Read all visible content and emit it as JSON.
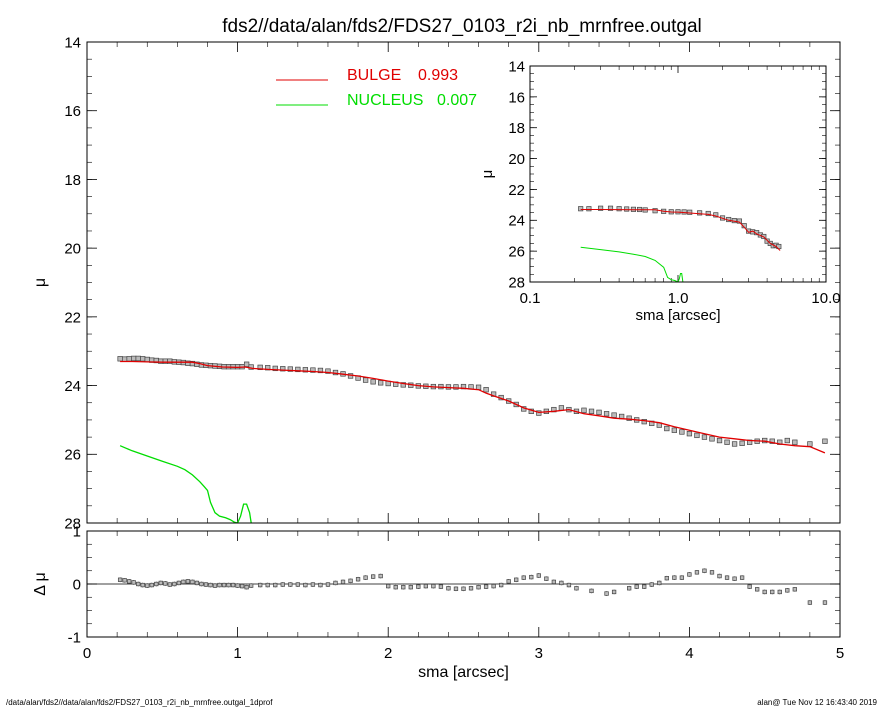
{
  "title": "fds2//data/alan/fds2/FDS27_0103_r2i_nb_mrnfree.outgal",
  "footer_left": "/data/alan/fds2//data/alan/fds2/FDS27_0103_r2i_nb_mrnfree.outgal_1dprof",
  "footer_right": "alan@  Tue Nov 12 16:43:40 2019",
  "colors": {
    "bulge": "#e00000",
    "nucleus": "#00dd00",
    "data": "#444444",
    "axis": "#000000"
  },
  "chart_data": [
    {
      "id": "main",
      "type": "scatter",
      "title": "",
      "xlabel": "",
      "ylabel": "μ",
      "xlim": [
        0,
        5
      ],
      "ylim": [
        28,
        14
      ],
      "y_inverted": true,
      "xticks": [
        "0",
        "1",
        "2",
        "3",
        "4",
        "5"
      ],
      "yticks": [
        "14",
        "16",
        "18",
        "20",
        "22",
        "24",
        "26",
        "28"
      ],
      "legend": [
        {
          "name": "BULGE",
          "value": "0.993",
          "color": "#e00000"
        },
        {
          "name": "NUCLEUS",
          "value": "0.007",
          "color": "#00dd00"
        }
      ],
      "legend_position": "top-left",
      "series": [
        {
          "name": "data",
          "kind": "points",
          "x": [
            0.22,
            0.25,
            0.28,
            0.31,
            0.34,
            0.37,
            0.4,
            0.43,
            0.46,
            0.49,
            0.52,
            0.55,
            0.58,
            0.61,
            0.64,
            0.67,
            0.7,
            0.73,
            0.76,
            0.79,
            0.82,
            0.85,
            0.88,
            0.91,
            0.94,
            0.97,
            1.0,
            1.03,
            1.06,
            1.09,
            1.15,
            1.2,
            1.25,
            1.3,
            1.35,
            1.4,
            1.45,
            1.5,
            1.55,
            1.6,
            1.65,
            1.7,
            1.75,
            1.8,
            1.85,
            1.9,
            1.95,
            2.0,
            2.05,
            2.1,
            2.15,
            2.2,
            2.25,
            2.3,
            2.35,
            2.4,
            2.45,
            2.5,
            2.55,
            2.6,
            2.65,
            2.7,
            2.75,
            2.8,
            2.85,
            2.9,
            2.95,
            3.0,
            3.05,
            3.1,
            3.15,
            3.2,
            3.25,
            3.3,
            3.35,
            3.4,
            3.45,
            3.5,
            3.55,
            3.6,
            3.65,
            3.7,
            3.75,
            3.8,
            3.85,
            3.9,
            3.95,
            4.0,
            4.05,
            4.1,
            4.15,
            4.2,
            4.25,
            4.3,
            4.35,
            4.4,
            4.45,
            4.5,
            4.55,
            4.6,
            4.65,
            4.7,
            4.8,
            4.9
          ],
          "y": [
            23.22,
            23.23,
            23.22,
            23.21,
            23.21,
            23.22,
            23.24,
            23.26,
            23.27,
            23.29,
            23.29,
            23.29,
            23.31,
            23.32,
            23.33,
            23.35,
            23.36,
            23.38,
            23.4,
            23.41,
            23.42,
            23.43,
            23.44,
            23.45,
            23.45,
            23.45,
            23.45,
            23.45,
            23.38,
            23.46,
            23.47,
            23.48,
            23.5,
            23.51,
            23.52,
            23.53,
            23.54,
            23.55,
            23.56,
            23.58,
            23.62,
            23.66,
            23.72,
            23.78,
            23.84,
            23.89,
            23.92,
            23.94,
            23.96,
            23.98,
            23.99,
            24.01,
            24.02,
            24.03,
            24.03,
            24.04,
            24.04,
            24.03,
            24.04,
            24.05,
            24.12,
            24.25,
            24.35,
            24.45,
            24.55,
            24.68,
            24.75,
            24.8,
            24.75,
            24.7,
            24.65,
            24.7,
            24.75,
            24.72,
            24.75,
            24.78,
            24.82,
            24.86,
            24.9,
            24.95,
            25.0,
            25.05,
            25.1,
            25.15,
            25.25,
            25.3,
            25.35,
            25.4,
            25.45,
            25.5,
            25.55,
            25.6,
            25.65,
            25.7,
            25.68,
            25.65,
            25.62,
            25.6,
            25.62,
            25.65,
            25.6,
            25.65,
            25.7,
            25.62
          ]
        },
        {
          "name": "BULGE",
          "kind": "line",
          "color": "#e00000",
          "x": [
            0.22,
            0.3,
            0.4,
            0.5,
            0.6,
            0.7,
            0.75,
            0.8,
            0.9,
            1.0,
            1.05,
            1.1,
            1.2,
            1.3,
            1.4,
            1.5,
            1.6,
            1.7,
            1.8,
            1.9,
            2.0,
            2.1,
            2.2,
            2.3,
            2.4,
            2.5,
            2.6,
            2.65,
            2.7,
            2.8,
            2.9,
            3.0,
            3.1,
            3.2,
            3.3,
            3.4,
            3.5,
            3.6,
            3.7,
            3.8,
            3.9,
            4.0,
            4.1,
            4.2,
            4.3,
            4.4,
            4.5,
            4.6,
            4.7,
            4.8,
            4.9
          ],
          "y": [
            23.3,
            23.3,
            23.31,
            23.32,
            23.32,
            23.32,
            23.36,
            23.42,
            23.46,
            23.47,
            23.46,
            23.5,
            23.53,
            23.55,
            23.57,
            23.59,
            23.62,
            23.67,
            23.72,
            23.79,
            23.87,
            23.94,
            24.0,
            24.04,
            24.06,
            24.08,
            24.12,
            24.22,
            24.3,
            24.45,
            24.65,
            24.78,
            24.75,
            24.7,
            24.82,
            24.88,
            24.95,
            24.98,
            25.02,
            25.08,
            25.2,
            25.3,
            25.4,
            25.5,
            25.55,
            25.6,
            25.62,
            25.7,
            25.75,
            25.78,
            25.96
          ]
        },
        {
          "name": "NUCLEUS",
          "kind": "line",
          "color": "#00dd00",
          "x": [
            0.22,
            0.3,
            0.4,
            0.5,
            0.6,
            0.65,
            0.7,
            0.75,
            0.78,
            0.8,
            0.82,
            0.85,
            0.88,
            0.92,
            0.95,
            0.98,
            1.0,
            1.02,
            1.04,
            1.06,
            1.08,
            1.09
          ],
          "y": [
            25.75,
            25.9,
            26.05,
            26.2,
            26.35,
            26.45,
            26.6,
            26.8,
            26.95,
            27.05,
            27.4,
            27.7,
            27.8,
            27.85,
            27.9,
            27.98,
            28.0,
            27.8,
            27.45,
            27.45,
            27.7,
            28.0
          ]
        }
      ]
    },
    {
      "id": "residual",
      "type": "scatter",
      "xlabel": "sma [arcsec]",
      "ylabel": "Δ μ",
      "xlim": [
        0,
        5
      ],
      "ylim": [
        -1,
        1
      ],
      "xticks": [
        "0",
        "1",
        "2",
        "3",
        "4",
        "5"
      ],
      "yticks": [
        "-1",
        "0",
        "1"
      ],
      "series": [
        {
          "name": "residual",
          "x": [
            0.22,
            0.25,
            0.28,
            0.31,
            0.34,
            0.37,
            0.4,
            0.43,
            0.46,
            0.49,
            0.52,
            0.55,
            0.58,
            0.61,
            0.64,
            0.67,
            0.7,
            0.73,
            0.76,
            0.79,
            0.82,
            0.85,
            0.88,
            0.91,
            0.94,
            0.97,
            1.0,
            1.03,
            1.06,
            1.09,
            1.15,
            1.2,
            1.25,
            1.3,
            1.35,
            1.4,
            1.45,
            1.5,
            1.55,
            1.6,
            1.65,
            1.7,
            1.75,
            1.8,
            1.85,
            1.9,
            1.95,
            2.0,
            2.05,
            2.1,
            2.15,
            2.2,
            2.25,
            2.3,
            2.35,
            2.4,
            2.45,
            2.5,
            2.55,
            2.6,
            2.65,
            2.7,
            2.75,
            2.8,
            2.85,
            2.9,
            2.95,
            3.0,
            3.05,
            3.1,
            3.15,
            3.2,
            3.25,
            3.35,
            3.45,
            3.5,
            3.6,
            3.65,
            3.7,
            3.75,
            3.8,
            3.85,
            3.9,
            3.95,
            4.0,
            4.05,
            4.1,
            4.15,
            4.2,
            4.25,
            4.3,
            4.35,
            4.4,
            4.45,
            4.5,
            4.55,
            4.6,
            4.65,
            4.7,
            4.8,
            4.9
          ],
          "y": [
            0.08,
            0.07,
            0.05,
            0.03,
            0.0,
            -0.02,
            -0.03,
            -0.02,
            0.0,
            0.02,
            0.01,
            -0.01,
            0.0,
            0.02,
            0.04,
            0.05,
            0.04,
            0.02,
            0.0,
            -0.01,
            -0.02,
            -0.03,
            -0.02,
            -0.02,
            -0.02,
            -0.02,
            -0.03,
            -0.04,
            -0.06,
            -0.03,
            -0.02,
            -0.02,
            -0.02,
            -0.01,
            -0.01,
            -0.01,
            -0.02,
            -0.01,
            -0.02,
            -0.01,
            0.02,
            0.04,
            0.06,
            0.09,
            0.12,
            0.14,
            0.15,
            -0.04,
            -0.06,
            -0.06,
            -0.06,
            -0.05,
            -0.04,
            -0.04,
            -0.05,
            -0.08,
            -0.09,
            -0.09,
            -0.08,
            -0.06,
            -0.05,
            -0.04,
            -0.02,
            0.05,
            0.08,
            0.12,
            0.13,
            0.16,
            0.1,
            0.04,
            0.02,
            -0.02,
            -0.08,
            -0.13,
            -0.18,
            -0.15,
            -0.08,
            -0.05,
            -0.05,
            -0.01,
            0.02,
            0.11,
            0.12,
            0.12,
            0.18,
            0.22,
            0.25,
            0.22,
            0.15,
            0.12,
            0.1,
            0.12,
            -0.05,
            -0.1,
            -0.15,
            -0.15,
            -0.15,
            -0.12,
            -0.1,
            -0.35,
            -0.35
          ]
        }
      ]
    },
    {
      "id": "inset",
      "type": "scatter",
      "xlabel": "sma [arcsec]",
      "ylabel": "μ",
      "x_scale": "log",
      "xlim": [
        0.1,
        10
      ],
      "ylim": [
        28,
        14
      ],
      "y_inverted": true,
      "xticks": [
        "0.1",
        "1.0",
        "10.0"
      ],
      "yticks": [
        "14",
        "16",
        "18",
        "20",
        "22",
        "24",
        "26",
        "28"
      ],
      "series": [
        {
          "name": "data",
          "x": [
            0.22,
            0.25,
            0.3,
            0.35,
            0.4,
            0.45,
            0.5,
            0.55,
            0.6,
            0.7,
            0.8,
            0.9,
            1.0,
            1.1,
            1.2,
            1.4,
            1.6,
            1.8,
            2.0,
            2.2,
            2.4,
            2.6,
            2.8,
            3.0,
            3.2,
            3.4,
            3.6,
            3.8,
            4.0,
            4.2,
            4.4,
            4.6,
            4.8
          ],
          "y": [
            23.25,
            23.25,
            23.22,
            23.22,
            23.25,
            23.27,
            23.29,
            23.3,
            23.33,
            23.38,
            23.42,
            23.45,
            23.45,
            23.46,
            23.48,
            23.52,
            23.56,
            23.65,
            23.85,
            23.95,
            24.02,
            24.05,
            24.35,
            24.7,
            24.75,
            24.8,
            24.95,
            25.05,
            25.35,
            25.5,
            25.65,
            25.62,
            25.7
          ]
        },
        {
          "name": "BULGE",
          "kind": "line",
          "color": "#e00000",
          "x": [
            0.22,
            0.3,
            0.4,
            0.5,
            0.6,
            0.7,
            0.8,
            0.9,
            1.0,
            1.2,
            1.4,
            1.6,
            1.8,
            2.0,
            2.2,
            2.4,
            2.6,
            2.8,
            3.0,
            3.2,
            3.4,
            3.6,
            3.8,
            4.0,
            4.2,
            4.4,
            4.6,
            4.9
          ],
          "y": [
            23.3,
            23.3,
            23.31,
            23.32,
            23.32,
            23.32,
            23.42,
            23.46,
            23.47,
            23.53,
            23.57,
            23.62,
            23.72,
            23.87,
            24.0,
            24.06,
            24.12,
            24.45,
            24.78,
            24.7,
            24.88,
            24.98,
            25.08,
            25.3,
            25.5,
            25.6,
            25.7,
            25.96
          ]
        },
        {
          "name": "NUCLEUS",
          "kind": "line",
          "color": "#00dd00",
          "x": [
            0.22,
            0.3,
            0.4,
            0.5,
            0.6,
            0.7,
            0.8,
            0.85,
            0.9,
            0.95,
            1.0,
            1.02,
            1.04,
            1.06,
            1.08
          ],
          "y": [
            25.75,
            25.9,
            26.05,
            26.2,
            26.35,
            26.6,
            27.05,
            27.7,
            27.85,
            27.9,
            28.0,
            27.8,
            27.45,
            27.45,
            28.0
          ]
        }
      ]
    }
  ]
}
